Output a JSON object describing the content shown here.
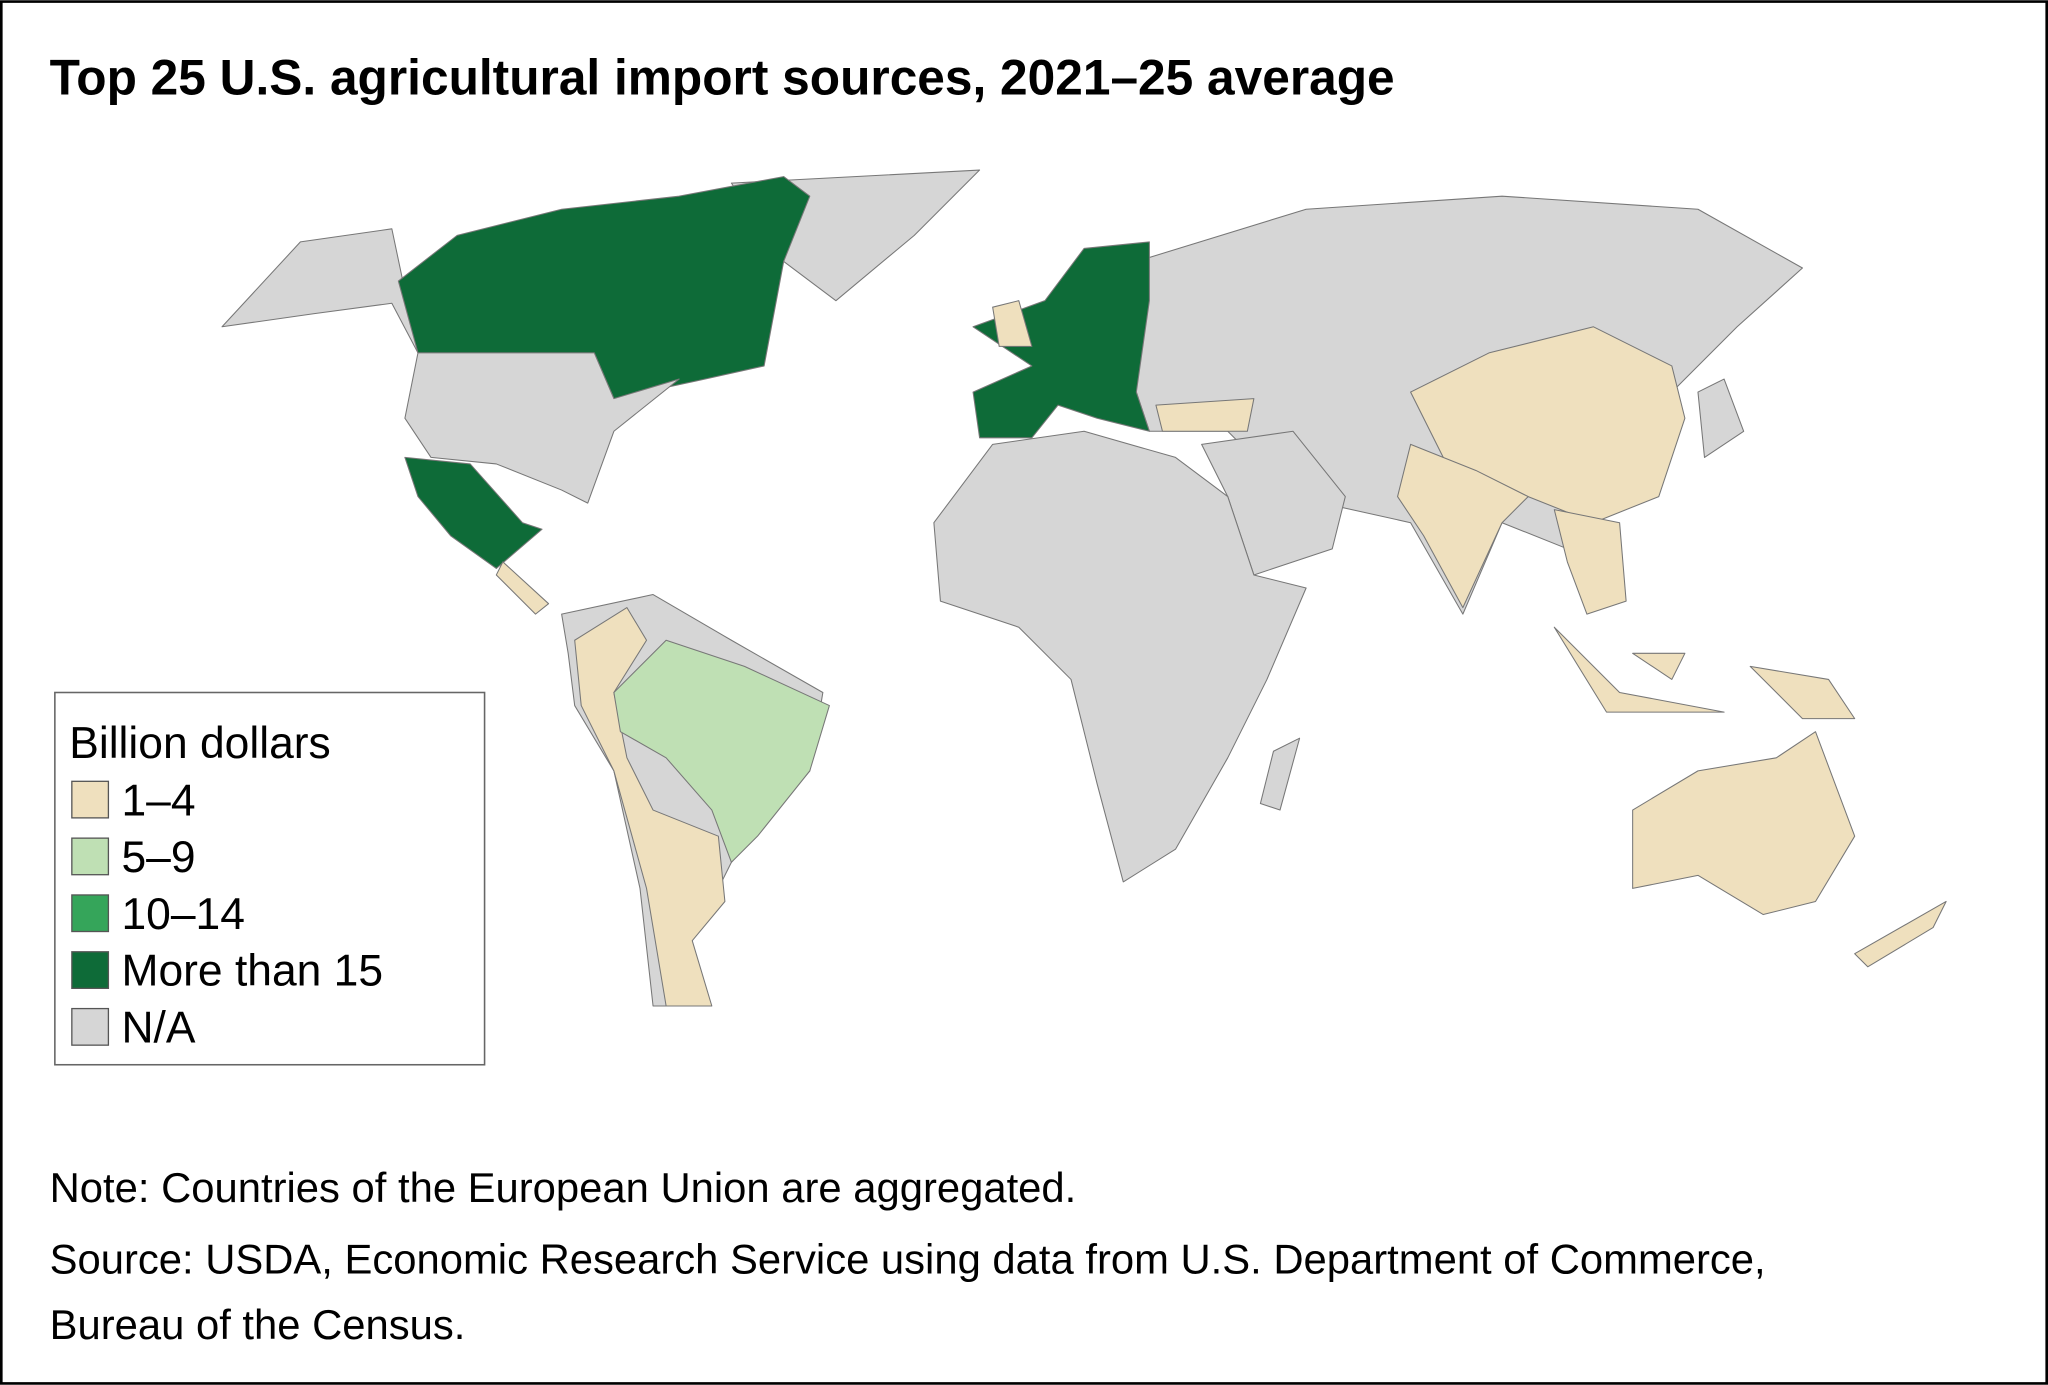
{
  "title": "Top 25 U.S. agricultural import sources, 2021–25 average",
  "legend": {
    "title": "Billion dollars",
    "items": [
      {
        "label": "1–4",
        "color": "#efe0be"
      },
      {
        "label": "5–9",
        "color": "#bfe0b4"
      },
      {
        "label": "10–14",
        "color": "#35a55a"
      },
      {
        "label": "More than 15",
        "color": "#0e6b38"
      },
      {
        "label": "N/A",
        "color": "#d6d6d6"
      }
    ]
  },
  "note": "Note: Countries of the European Union are aggregated.",
  "source": [
    "Source: USDA, Economic Research Service using data from U.S. Department of Commerce,",
    "Bureau of the Census."
  ]
}
